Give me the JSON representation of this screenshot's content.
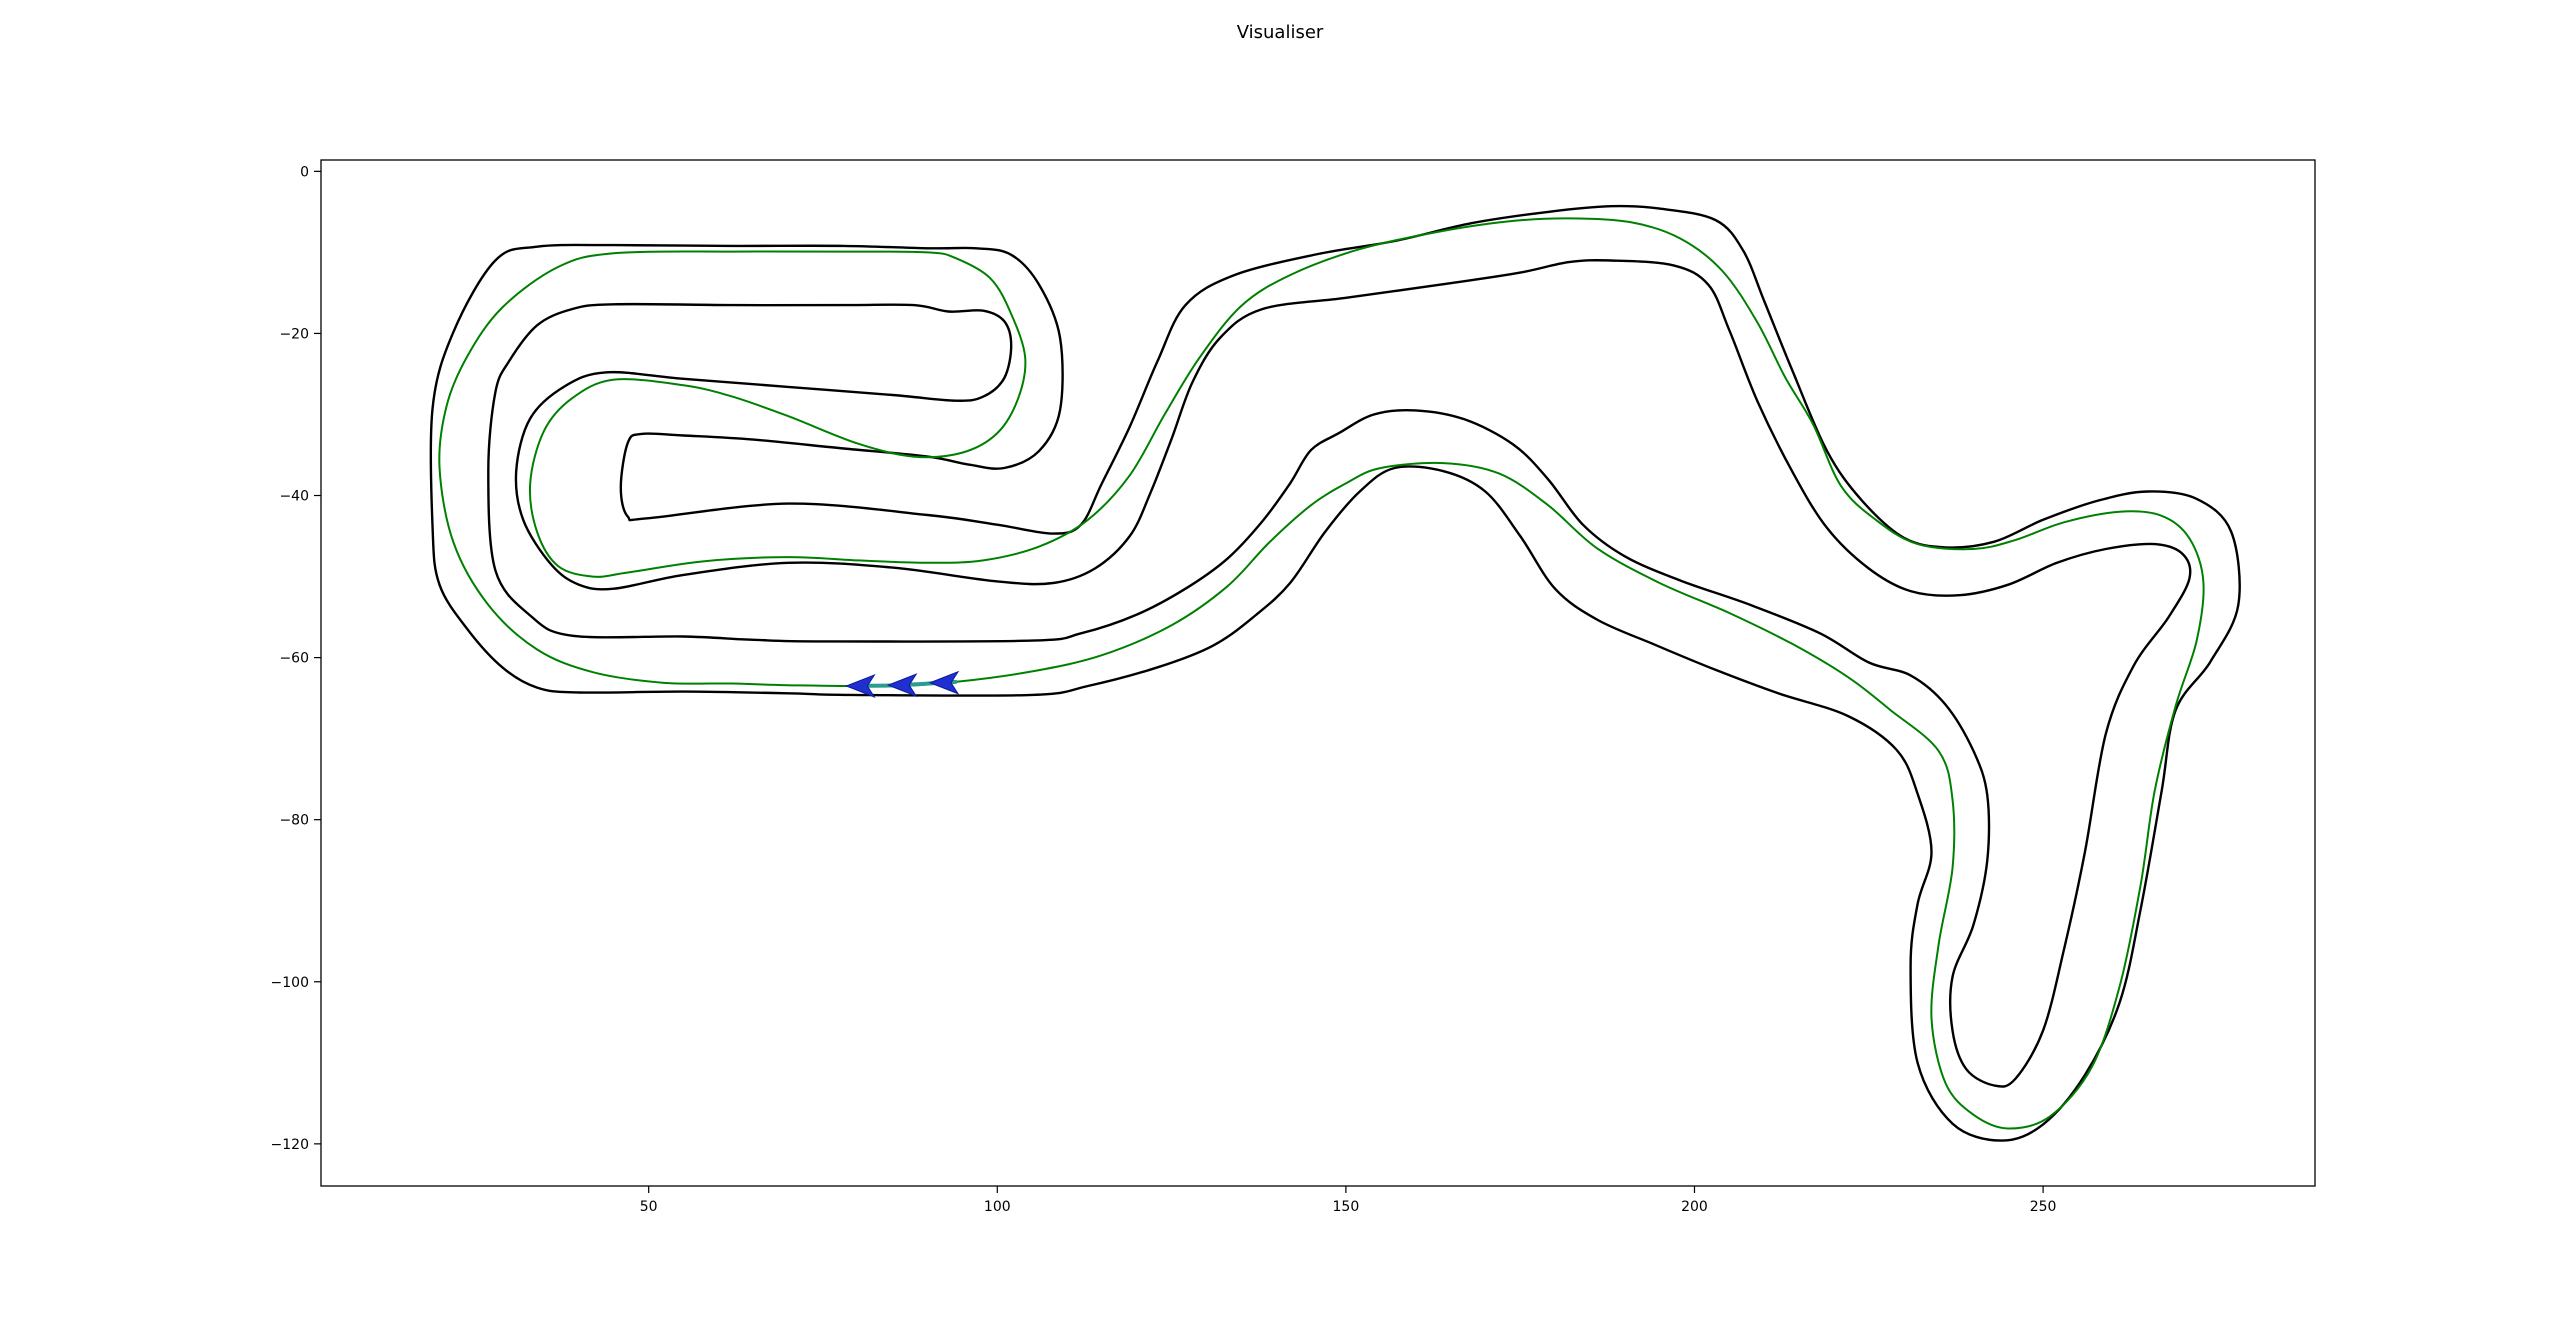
{
  "title": "Visualiser",
  "chart_data": {
    "type": "line",
    "title": "Visualiser",
    "xlabel": "",
    "ylabel": "",
    "xlim": [
      3,
      289
    ],
    "ylim": [
      -125.2,
      1.4
    ],
    "x_ticks": [
      50,
      100,
      150,
      200,
      250
    ],
    "y_ticks": [
      0,
      -20,
      -40,
      -60,
      -80,
      -100,
      -120
    ],
    "grid": false,
    "colors": {
      "boundary": "#000000",
      "path": "#008000",
      "car": "#1f2fd0",
      "car_center": "#2a9d8f"
    },
    "series": [
      {
        "role": "outer-boundary",
        "closed": true,
        "points": [
          [
            79,
            -64.6
          ],
          [
            105,
            -64.6
          ],
          [
            113,
            -63.5
          ],
          [
            123,
            -61.2
          ],
          [
            131,
            -58.5
          ],
          [
            137,
            -54.8
          ],
          [
            142,
            -50.8
          ],
          [
            147,
            -44.5
          ],
          [
            152,
            -39.5
          ],
          [
            157,
            -36.6
          ],
          [
            164,
            -37
          ],
          [
            170,
            -39.5
          ],
          [
            175,
            -45
          ],
          [
            180,
            -51.5
          ],
          [
            186,
            -55.3
          ],
          [
            194,
            -58.3
          ],
          [
            203,
            -61.5
          ],
          [
            212,
            -64.4
          ],
          [
            222,
            -67.2
          ],
          [
            229,
            -71.4
          ],
          [
            232,
            -76.8
          ],
          [
            234,
            -84
          ],
          [
            232,
            -90.4
          ],
          [
            231,
            -98
          ],
          [
            232,
            -110
          ],
          [
            237,
            -117.5
          ],
          [
            244,
            -119.6
          ],
          [
            250,
            -117.6
          ],
          [
            256,
            -111.5
          ],
          [
            261,
            -102.5
          ],
          [
            264,
            -91
          ],
          [
            267,
            -76.5
          ],
          [
            269,
            -66.5
          ],
          [
            274,
            -60.5
          ],
          [
            278,
            -53.5
          ],
          [
            277,
            -44.5
          ],
          [
            272,
            -40.4
          ],
          [
            265,
            -39.5
          ],
          [
            258,
            -40.6
          ],
          [
            250,
            -43
          ],
          [
            243,
            -45.7
          ],
          [
            236,
            -46.4
          ],
          [
            230,
            -45.2
          ],
          [
            224,
            -40.6
          ],
          [
            219,
            -34.5
          ],
          [
            214,
            -24.5
          ],
          [
            210,
            -16
          ],
          [
            207,
            -9.8
          ],
          [
            203,
            -6
          ],
          [
            195,
            -4.6
          ],
          [
            188,
            -4.3
          ],
          [
            179,
            -5
          ],
          [
            168,
            -6.4
          ],
          [
            157,
            -8.6
          ],
          [
            146,
            -10.2
          ],
          [
            134,
            -12.8
          ],
          [
            127,
            -16.5
          ],
          [
            123,
            -23.4
          ],
          [
            119,
            -31.5
          ],
          [
            115,
            -38.5
          ],
          [
            112,
            -43.6
          ],
          [
            108,
            -44.7
          ],
          [
            100,
            -43.6
          ],
          [
            90,
            -42.4
          ],
          [
            70,
            -41
          ],
          [
            50,
            -42.8
          ],
          [
            47,
            -42.6
          ],
          [
            46,
            -39
          ],
          [
            47,
            -33.5
          ],
          [
            49,
            -32.4
          ],
          [
            55,
            -32.6
          ],
          [
            65,
            -33.1
          ],
          [
            78,
            -34.2
          ],
          [
            90,
            -35.2
          ],
          [
            96,
            -36.2
          ],
          [
            101,
            -36.6
          ],
          [
            106,
            -34.5
          ],
          [
            109,
            -29.5
          ],
          [
            109,
            -20.5
          ],
          [
            106,
            -14
          ],
          [
            102,
            -10.3
          ],
          [
            97,
            -9.5
          ],
          [
            90,
            -9.5
          ],
          [
            78,
            -9.2
          ],
          [
            62,
            -9.2
          ],
          [
            45,
            -9.1
          ],
          [
            34,
            -9.3
          ],
          [
            28,
            -11
          ],
          [
            22,
            -19.8
          ],
          [
            19,
            -29.2
          ],
          [
            19,
            -44
          ],
          [
            20,
            -51
          ],
          [
            24,
            -56.5
          ],
          [
            29,
            -61.2
          ],
          [
            34,
            -63.7
          ],
          [
            40,
            -64.3
          ],
          [
            55,
            -64.2
          ],
          [
            70,
            -64.4
          ]
        ]
      },
      {
        "role": "inner-boundary",
        "closed": true,
        "points": [
          [
            75,
            -58
          ],
          [
            105,
            -57.9
          ],
          [
            112,
            -57
          ],
          [
            120,
            -54.7
          ],
          [
            127,
            -51.5
          ],
          [
            133,
            -47.8
          ],
          [
            138,
            -43.2
          ],
          [
            142,
            -38.5
          ],
          [
            145,
            -34.4
          ],
          [
            149,
            -32.3
          ],
          [
            154,
            -30
          ],
          [
            160,
            -29.5
          ],
          [
            167,
            -30.6
          ],
          [
            174,
            -33.7
          ],
          [
            179,
            -38
          ],
          [
            184,
            -43.6
          ],
          [
            190,
            -47.5
          ],
          [
            198,
            -50.5
          ],
          [
            208,
            -53.5
          ],
          [
            218,
            -57
          ],
          [
            225,
            -60.6
          ],
          [
            231,
            -62.2
          ],
          [
            236,
            -65.8
          ],
          [
            240,
            -71.5
          ],
          [
            242,
            -77
          ],
          [
            242,
            -85
          ],
          [
            240,
            -93
          ],
          [
            237,
            -99.4
          ],
          [
            237,
            -106
          ],
          [
            239,
            -110.8
          ],
          [
            243,
            -112.8
          ],
          [
            246,
            -112
          ],
          [
            250,
            -106
          ],
          [
            253,
            -96
          ],
          [
            256,
            -84
          ],
          [
            259,
            -69.4
          ],
          [
            263,
            -61
          ],
          [
            268,
            -55
          ],
          [
            271,
            -50.2
          ],
          [
            270,
            -47.2
          ],
          [
            266,
            -46
          ],
          [
            259,
            -46.6
          ],
          [
            252,
            -48.3
          ],
          [
            245,
            -51
          ],
          [
            238,
            -52.3
          ],
          [
            231,
            -51.8
          ],
          [
            225,
            -49
          ],
          [
            219,
            -44
          ],
          [
            214,
            -37
          ],
          [
            209,
            -28.3
          ],
          [
            205,
            -19.6
          ],
          [
            202,
            -14
          ],
          [
            197,
            -11.6
          ],
          [
            188,
            -11
          ],
          [
            182,
            -11.2
          ],
          [
            175,
            -12.5
          ],
          [
            165,
            -13.8
          ],
          [
            150,
            -15.6
          ],
          [
            138,
            -17
          ],
          [
            132,
            -20.5
          ],
          [
            128,
            -26
          ],
          [
            125,
            -33
          ],
          [
            122,
            -39.6
          ],
          [
            119,
            -45
          ],
          [
            114,
            -49
          ],
          [
            108,
            -50.8
          ],
          [
            100,
            -50.6
          ],
          [
            85,
            -48.9
          ],
          [
            70,
            -48.3
          ],
          [
            55,
            -49.8
          ],
          [
            45,
            -51.5
          ],
          [
            40,
            -51
          ],
          [
            36,
            -48.5
          ],
          [
            32,
            -43
          ],
          [
            31,
            -37
          ],
          [
            33,
            -30.5
          ],
          [
            38,
            -26.5
          ],
          [
            44,
            -24.8
          ],
          [
            55,
            -25.6
          ],
          [
            70,
            -26.6
          ],
          [
            85,
            -27.6
          ],
          [
            94,
            -28.3
          ],
          [
            98,
            -27.8
          ],
          [
            101,
            -25.5
          ],
          [
            102,
            -21.5
          ],
          [
            101,
            -18.5
          ],
          [
            98,
            -17.2
          ],
          [
            93,
            -17.3
          ],
          [
            88,
            -16.5
          ],
          [
            78,
            -16.5
          ],
          [
            62,
            -16.5
          ],
          [
            45,
            -16.4
          ],
          [
            39,
            -17
          ],
          [
            34,
            -19
          ],
          [
            30,
            -23.4
          ],
          [
            28,
            -27.3
          ],
          [
            27,
            -37
          ],
          [
            28,
            -49.2
          ],
          [
            33,
            -54.8
          ],
          [
            39,
            -57.3
          ],
          [
            55,
            -57.4
          ],
          [
            65,
            -57.8
          ]
        ]
      },
      {
        "role": "racing-line",
        "closed": true,
        "points": [
          [
            70,
            -63.4
          ],
          [
            85,
            -63.5
          ],
          [
            94,
            -63
          ],
          [
            105,
            -61.7
          ],
          [
            115,
            -59.7
          ],
          [
            125,
            -56
          ],
          [
            133,
            -51.2
          ],
          [
            139,
            -45.8
          ],
          [
            145,
            -41.2
          ],
          [
            150,
            -38.5
          ],
          [
            155,
            -36.6
          ],
          [
            164,
            -36
          ],
          [
            172,
            -37.3
          ],
          [
            179,
            -41.2
          ],
          [
            186,
            -46.5
          ],
          [
            195,
            -50.8
          ],
          [
            205,
            -54.5
          ],
          [
            214,
            -58.3
          ],
          [
            222,
            -62.4
          ],
          [
            228,
            -66.4
          ],
          [
            235,
            -71.5
          ],
          [
            237,
            -77.5
          ],
          [
            237,
            -86
          ],
          [
            235,
            -95.5
          ],
          [
            234,
            -104.5
          ],
          [
            236,
            -112.5
          ],
          [
            240,
            -116.4
          ],
          [
            245,
            -118.1
          ],
          [
            251,
            -116.6
          ],
          [
            257,
            -110.5
          ],
          [
            261,
            -100.5
          ],
          [
            264,
            -88
          ],
          [
            266,
            -76.5
          ],
          [
            269,
            -66
          ],
          [
            272,
            -58
          ],
          [
            273,
            -50.7
          ],
          [
            271,
            -45.3
          ],
          [
            267,
            -42.5
          ],
          [
            261,
            -42
          ],
          [
            253,
            -43.3
          ],
          [
            246,
            -45.5
          ],
          [
            240,
            -46.6
          ],
          [
            232,
            -46
          ],
          [
            226,
            -43
          ],
          [
            221,
            -38.8
          ],
          [
            217,
            -31.2
          ],
          [
            213,
            -25.4
          ],
          [
            209,
            -18.6
          ],
          [
            204,
            -12.3
          ],
          [
            198,
            -8.3
          ],
          [
            191,
            -6.3
          ],
          [
            182,
            -5.8
          ],
          [
            173,
            -6.2
          ],
          [
            163,
            -7.5
          ],
          [
            152,
            -9.6
          ],
          [
            142,
            -12.8
          ],
          [
            135,
            -16.6
          ],
          [
            129,
            -23
          ],
          [
            124,
            -30
          ],
          [
            119,
            -37.5
          ],
          [
            113,
            -43
          ],
          [
            106,
            -46.3
          ],
          [
            98,
            -48
          ],
          [
            90,
            -48.3
          ],
          [
            80,
            -48
          ],
          [
            70,
            -47.6
          ],
          [
            58,
            -48.1
          ],
          [
            47,
            -49.5
          ],
          [
            42,
            -50
          ],
          [
            37,
            -48.7
          ],
          [
            34,
            -44.5
          ],
          [
            33,
            -38.5
          ],
          [
            35,
            -32
          ],
          [
            39,
            -28
          ],
          [
            45,
            -25.7
          ],
          [
            55,
            -26.4
          ],
          [
            62,
            -27.8
          ],
          [
            70,
            -30.2
          ],
          [
            80,
            -33.6
          ],
          [
            88,
            -35.2
          ],
          [
            95,
            -34.7
          ],
          [
            100,
            -32.3
          ],
          [
            103,
            -28
          ],
          [
            104,
            -23
          ],
          [
            102,
            -17.6
          ],
          [
            99,
            -13.2
          ],
          [
            94,
            -10.7
          ],
          [
            90,
            -10
          ],
          [
            78,
            -9.9
          ],
          [
            62,
            -9.9
          ],
          [
            45,
            -10.1
          ],
          [
            37,
            -11.8
          ],
          [
            29,
            -16.8
          ],
          [
            24,
            -22.8
          ],
          [
            21,
            -29
          ],
          [
            20,
            -36.5
          ],
          [
            22,
            -45.8
          ],
          [
            27,
            -53.5
          ],
          [
            34,
            -59
          ],
          [
            42,
            -61.8
          ],
          [
            52,
            -63.1
          ],
          [
            62,
            -63.2
          ]
        ]
      },
      {
        "role": "car-trail",
        "closed": false,
        "points": [
          [
            79,
            -63.5
          ],
          [
            86,
            -63.4
          ],
          [
            92,
            -63.1
          ],
          [
            94,
            -63
          ]
        ]
      }
    ],
    "markers": [
      {
        "type": "arrow",
        "x": 79.5,
        "y": -63.5,
        "direction": "west"
      },
      {
        "type": "arrow",
        "x": 85.5,
        "y": -63.4,
        "direction": "west"
      },
      {
        "type": "arrow",
        "x": 91.5,
        "y": -63.1,
        "direction": "west"
      }
    ]
  }
}
